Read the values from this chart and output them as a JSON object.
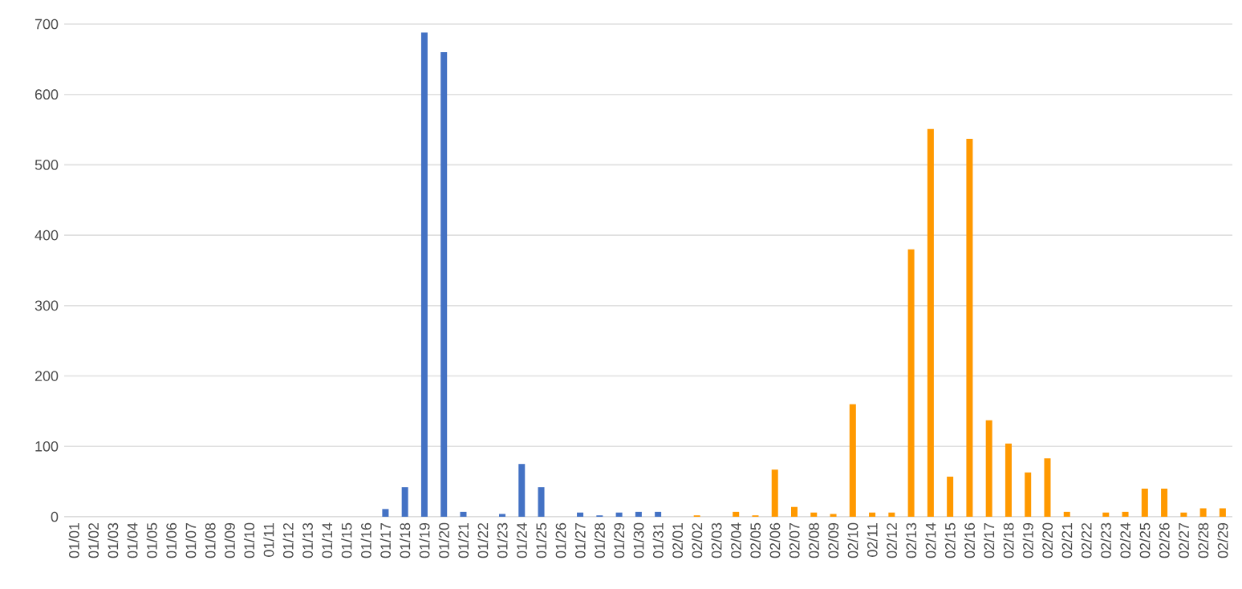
{
  "chart_data": {
    "type": "bar",
    "categories": [
      "01/01",
      "01/02",
      "01/03",
      "01/04",
      "01/05",
      "01/06",
      "01/07",
      "01/08",
      "01/09",
      "01/10",
      "01/11",
      "01/12",
      "01/13",
      "01/14",
      "01/15",
      "01/16",
      "01/17",
      "01/18",
      "01/19",
      "01/20",
      "01/21",
      "01/22",
      "01/23",
      "01/24",
      "01/25",
      "01/26",
      "01/27",
      "01/28",
      "01/29",
      "01/30",
      "01/31",
      "02/01",
      "02/02",
      "02/03",
      "02/04",
      "02/05",
      "02/06",
      "02/07",
      "02/08",
      "02/09",
      "02/10",
      "02/11",
      "02/12",
      "02/13",
      "02/14",
      "02/15",
      "02/16",
      "02/17",
      "02/18",
      "02/19",
      "02/20",
      "02/21",
      "02/22",
      "02/23",
      "02/24",
      "02/25",
      "02/26",
      "02/27",
      "02/28",
      "02/29"
    ],
    "values": [
      0,
      0,
      0,
      0,
      0,
      0,
      0,
      0,
      0,
      0,
      0,
      0,
      0,
      0,
      0,
      0,
      11,
      42,
      688,
      660,
      7,
      0,
      4,
      75,
      42,
      0,
      6,
      2,
      6,
      7,
      7,
      0,
      2,
      0,
      7,
      2,
      67,
      14,
      6,
      4,
      160,
      6,
      6,
      380,
      551,
      57,
      537,
      137,
      104,
      63,
      83,
      7,
      0,
      6,
      7,
      40,
      40,
      6,
      12,
      12
    ],
    "colors": [
      "#4472c4",
      "#4472c4",
      "#4472c4",
      "#4472c4",
      "#4472c4",
      "#4472c4",
      "#4472c4",
      "#4472c4",
      "#4472c4",
      "#4472c4",
      "#4472c4",
      "#4472c4",
      "#4472c4",
      "#4472c4",
      "#4472c4",
      "#4472c4",
      "#4472c4",
      "#4472c4",
      "#4472c4",
      "#4472c4",
      "#4472c4",
      "#4472c4",
      "#4472c4",
      "#4472c4",
      "#4472c4",
      "#4472c4",
      "#4472c4",
      "#4472c4",
      "#4472c4",
      "#4472c4",
      "#4472c4",
      "#ff9900",
      "#ff9900",
      "#ff9900",
      "#ff9900",
      "#ff9900",
      "#ff9900",
      "#ff9900",
      "#ff9900",
      "#ff9900",
      "#ff9900",
      "#ff9900",
      "#ff9900",
      "#ff9900",
      "#ff9900",
      "#ff9900",
      "#ff9900",
      "#ff9900",
      "#ff9900",
      "#ff9900",
      "#ff9900",
      "#ff9900",
      "#ff9900",
      "#ff9900",
      "#ff9900",
      "#ff9900",
      "#ff9900",
      "#ff9900",
      "#ff9900",
      "#ff9900"
    ],
    "ylim": [
      0,
      700
    ],
    "yticks": [
      0,
      100,
      200,
      300,
      400,
      500,
      600,
      700
    ],
    "grid": "y"
  }
}
